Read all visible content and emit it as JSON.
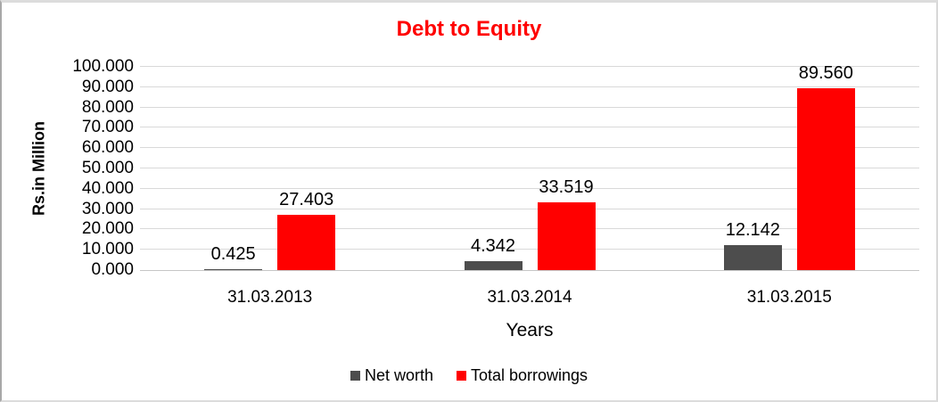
{
  "title": {
    "text": "Debt to Equity",
    "color": "#FF0000"
  },
  "chart_data": {
    "type": "bar",
    "title": "Debt to Equity",
    "title_color": "#FF0000",
    "categories": [
      "31.03.2013",
      "31.03.2014",
      "31.03.2015"
    ],
    "series": [
      {
        "name": "Net worth",
        "color": "#4D4D4D",
        "values": [
          0.425,
          4.342,
          12.142
        ],
        "value_labels": [
          "0.425",
          "4.342",
          "12.142"
        ]
      },
      {
        "name": "Total borrowings",
        "color": "#FF0000",
        "values": [
          27.403,
          33.519,
          89.56
        ],
        "value_labels": [
          "27.403",
          "33.519",
          "89.560"
        ]
      }
    ],
    "xlabel": "Years",
    "ylabel": "Rs.in Million",
    "ylim": [
      0,
      100
    ],
    "ytick_step": 10,
    "ytick_labels": [
      "0.000",
      "10.000",
      "20.000",
      "30.000",
      "40.000",
      "50.000",
      "60.000",
      "70.000",
      "80.000",
      "90.000",
      "100.000"
    ],
    "grid": true,
    "legend_position": "bottom"
  }
}
